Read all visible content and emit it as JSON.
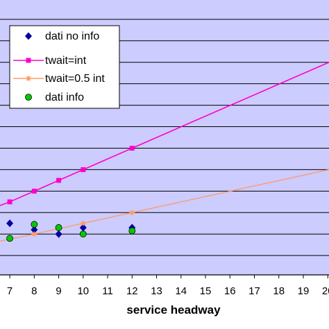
{
  "chart_data": {
    "type": "line",
    "title": "",
    "xlabel": "service headway",
    "ylabel": "",
    "xlim": [
      6.6,
      20.05
    ],
    "ylim": [
      -1.9,
      10.9
    ],
    "x_ticks": [
      7,
      8,
      9,
      10,
      11,
      12,
      13,
      14,
      15,
      16,
      17,
      18,
      19,
      20
    ],
    "x_tick_labels": [
      "7",
      "8",
      "9",
      "10",
      "11",
      "12",
      "13",
      "14",
      "15",
      "16",
      "17",
      "18",
      "19",
      "20"
    ],
    "y_gridlines": [
      -1,
      0,
      1,
      2,
      3,
      4,
      5,
      6,
      7,
      8,
      9,
      10
    ],
    "grid": true,
    "plot_background": "#ccccff",
    "legend_position": "top-left",
    "series": [
      {
        "name": "dati no info",
        "kind": "scatter",
        "marker": "diamond",
        "color": "#0000a0",
        "x": [
          7,
          8,
          9,
          10,
          12
        ],
        "y": [
          0.5,
          0.2,
          0.0,
          0.3,
          0.3
        ]
      },
      {
        "name": "twait=int",
        "kind": "line",
        "marker": "square",
        "color": "#ff00cc",
        "x": [
          6.6,
          7,
          8,
          9,
          10,
          12,
          20.05
        ],
        "y": [
          1.33,
          1.5,
          2.0,
          2.5,
          3.0,
          4.0,
          8.0
        ],
        "marker_x": [
          7,
          8,
          9,
          10,
          12
        ],
        "marker_y": [
          1.5,
          2.0,
          2.5,
          3.0,
          4.0
        ]
      },
      {
        "name": "twait=0.5 int",
        "kind": "line",
        "marker": "star",
        "color": "#ff9966",
        "x": [
          6.6,
          8,
          10,
          12,
          20.05
        ],
        "y": [
          -0.33,
          0.0,
          0.5,
          1.0,
          3.0
        ],
        "marker_x": [
          8,
          10,
          12
        ],
        "marker_y": [
          0.0,
          0.5,
          1.0
        ]
      },
      {
        "name": "dati info",
        "kind": "scatter",
        "marker": "circle",
        "color": "#00cc00",
        "x": [
          7,
          8,
          9,
          10,
          12
        ],
        "y": [
          -0.2,
          0.45,
          0.3,
          0.0,
          0.15
        ]
      }
    ]
  }
}
